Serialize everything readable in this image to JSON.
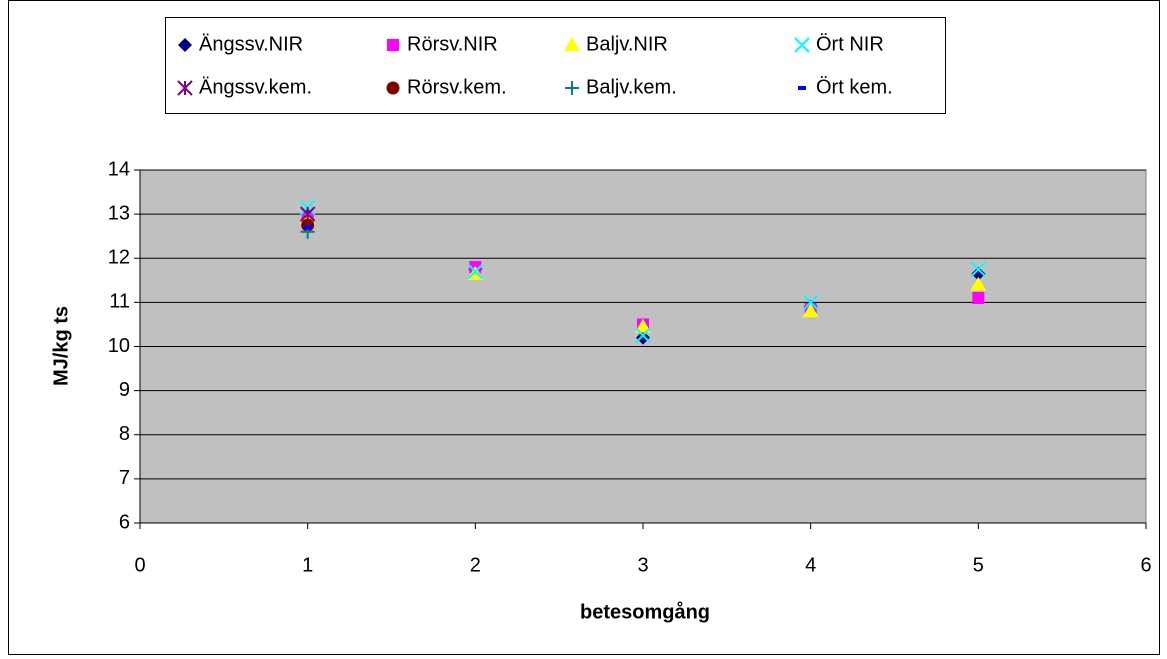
{
  "chart_data": {
    "type": "scatter",
    "xlabel": "betesomgång",
    "ylabel": "MJ/kg ts",
    "xlim": [
      0,
      6
    ],
    "xticks": [
      0,
      1,
      2,
      3,
      4,
      5,
      6
    ],
    "ylim": [
      6,
      14
    ],
    "yticks": [
      6,
      7,
      8,
      9,
      10,
      11,
      12,
      13,
      14
    ],
    "grid": true,
    "legend": "top",
    "series": [
      {
        "name": "Ängssv.NIR",
        "color": "#000080",
        "marker": "diamond",
        "x": [
          1,
          2,
          3,
          4,
          5
        ],
        "values": [
          13.0,
          11.75,
          10.2,
          10.9,
          11.65
        ]
      },
      {
        "name": "Rörsv.NIR",
        "color": "#ff00ff",
        "marker": "square",
        "x": [
          1,
          2,
          3,
          4,
          5
        ],
        "values": [
          12.9,
          11.8,
          10.5,
          10.85,
          11.1
        ]
      },
      {
        "name": "Baljv.NIR",
        "color": "#ffff00",
        "marker": "triangle",
        "x": [
          1,
          2,
          3,
          4,
          5
        ],
        "values": [
          12.9,
          11.65,
          10.45,
          10.8,
          11.4
        ]
      },
      {
        "name": "Ört NIR",
        "color": "#00ffff",
        "marker": "x",
        "x": [
          1,
          2,
          3,
          4,
          5
        ],
        "values": [
          13.15,
          11.7,
          10.25,
          11.0,
          11.75
        ]
      },
      {
        "name": "Ängssv.kem.",
        "color": "#800080",
        "marker": "asterisk",
        "x": [
          1
        ],
        "values": [
          13.0
        ]
      },
      {
        "name": "Rörsv.kem.",
        "color": "#800000",
        "marker": "circle",
        "x": [
          1
        ],
        "values": [
          12.75
        ]
      },
      {
        "name": "Baljv.kem.",
        "color": "#008080",
        "marker": "plus",
        "x": [
          1
        ],
        "values": [
          12.6
        ]
      },
      {
        "name": "Ört kem.",
        "color": "#0000ff",
        "marker": "dash",
        "x": [
          1
        ],
        "values": [
          12.7
        ]
      }
    ]
  }
}
